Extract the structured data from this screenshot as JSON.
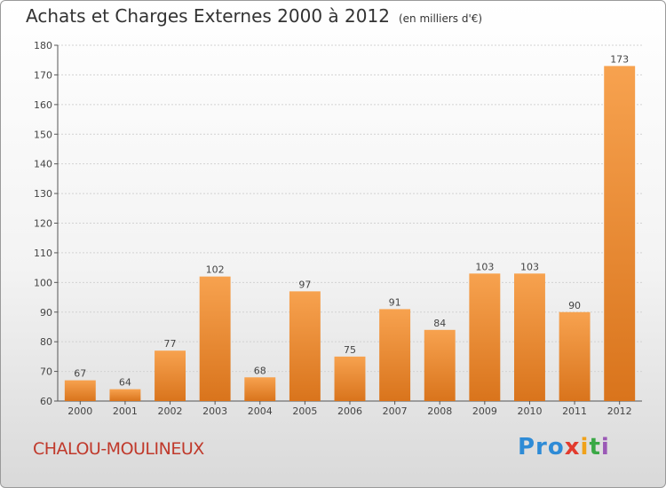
{
  "chart_data": {
    "type": "bar",
    "title": "Achats et Charges Externes 2000 à 2012",
    "subtitle": "(en milliers d'€)",
    "categories": [
      "2000",
      "2001",
      "2002",
      "2003",
      "2004",
      "2005",
      "2006",
      "2007",
      "2008",
      "2009",
      "2010",
      "2011",
      "2012"
    ],
    "values": [
      67,
      64,
      77,
      102,
      68,
      97,
      75,
      91,
      84,
      103,
      103,
      90,
      173
    ],
    "ylim": [
      60,
      180
    ],
    "yticks": [
      60,
      70,
      80,
      90,
      100,
      110,
      120,
      130,
      140,
      150,
      160,
      170,
      180
    ],
    "grid": true,
    "bar_color_top": "#f7a24f",
    "bar_color_bottom": "#d9741c"
  },
  "footer": {
    "commune": "CHALOU-MOULINEUX",
    "logo": [
      "Pro",
      "x",
      "i",
      "t",
      "i"
    ]
  }
}
